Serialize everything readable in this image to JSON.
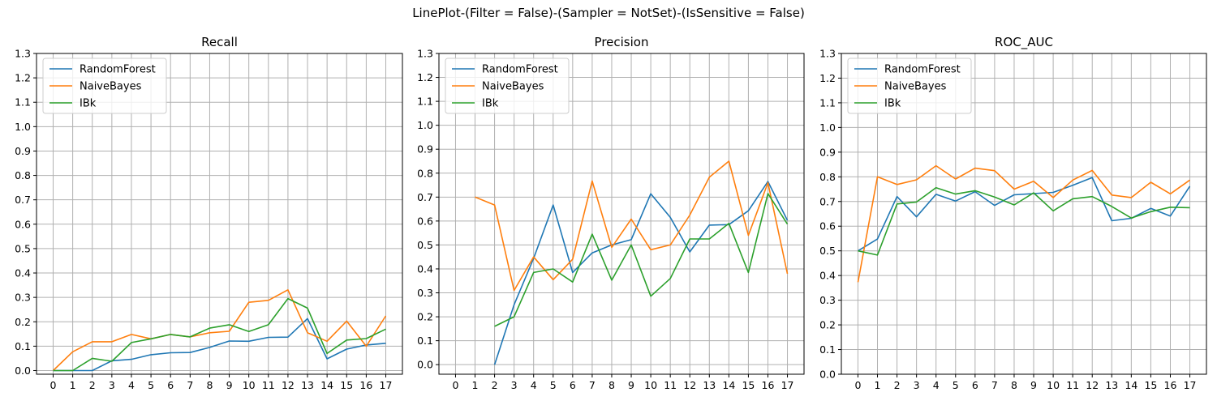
{
  "figure": {
    "suptitle": "LinePlot-(Filter = False)-(Sampler = NotSet)-(IsSensitive = False)",
    "colors": {
      "RandomForest": "#1f77b4",
      "NaiveBayes": "#ff7f0e",
      "IBk": "#2ca02c"
    }
  },
  "chart_data": [
    {
      "type": "line",
      "title": "Recall",
      "xlabel": "",
      "ylabel": "",
      "x": [
        0,
        1,
        2,
        3,
        4,
        5,
        6,
        7,
        8,
        9,
        10,
        11,
        12,
        13,
        14,
        15,
        16,
        17
      ],
      "xlim": [
        -0.85,
        17.85
      ],
      "ylim": [
        -0.015,
        1.3
      ],
      "yticks": [
        0.0,
        0.1,
        0.2,
        0.3,
        0.4,
        0.5,
        0.6,
        0.7,
        0.8,
        0.9,
        1.0,
        1.1,
        1.2,
        1.3
      ],
      "grid": true,
      "legend": "top-left",
      "series": [
        {
          "name": "RandomForest",
          "values": [
            0.0,
            0.0,
            0.0,
            0.04,
            0.046,
            0.065,
            0.073,
            0.074,
            0.095,
            0.121,
            0.12,
            0.136,
            0.137,
            0.213,
            0.048,
            0.088,
            0.105,
            0.112
          ]
        },
        {
          "name": "NaiveBayes",
          "values": [
            0.0,
            0.077,
            0.118,
            0.118,
            0.148,
            0.13,
            0.148,
            0.138,
            0.155,
            0.161,
            0.28,
            0.288,
            0.331,
            0.155,
            0.12,
            0.203,
            0.1,
            0.224
          ]
        },
        {
          "name": "IBk",
          "values": [
            0.0,
            0.0,
            0.05,
            0.038,
            0.115,
            0.13,
            0.148,
            0.138,
            0.174,
            0.188,
            0.16,
            0.188,
            0.295,
            0.256,
            0.07,
            0.125,
            0.131,
            0.17
          ]
        }
      ]
    },
    {
      "type": "line",
      "title": "Precision",
      "xlabel": "",
      "ylabel": "",
      "x": [
        0,
        1,
        2,
        3,
        4,
        5,
        6,
        7,
        8,
        9,
        10,
        11,
        12,
        13,
        14,
        15,
        16,
        17
      ],
      "xlim": [
        -0.85,
        17.85
      ],
      "ylim": [
        -0.04,
        1.3
      ],
      "yticks": [
        0.0,
        0.1,
        0.2,
        0.3,
        0.4,
        0.5,
        0.6,
        0.7,
        0.8,
        0.9,
        1.0,
        1.1,
        1.2,
        1.3
      ],
      "grid": true,
      "legend": "top-left",
      "series": [
        {
          "name": "RandomForest",
          "values": [
            null,
            null,
            0.0,
            0.25,
            0.444,
            0.667,
            0.385,
            0.467,
            0.5,
            0.522,
            0.714,
            0.615,
            0.471,
            0.583,
            0.585,
            0.643,
            0.765,
            0.603
          ]
        },
        {
          "name": "NaiveBayes",
          "values": [
            null,
            0.7,
            0.667,
            0.31,
            0.45,
            0.355,
            0.44,
            0.767,
            0.49,
            0.608,
            0.48,
            0.5,
            0.625,
            0.783,
            0.85,
            0.54,
            0.76,
            0.38
          ]
        },
        {
          "name": "IBk",
          "values": [
            null,
            null,
            0.16,
            0.2,
            0.385,
            0.4,
            0.345,
            0.545,
            0.353,
            0.5,
            0.286,
            0.36,
            0.525,
            0.525,
            0.59,
            0.385,
            0.715,
            0.587
          ]
        }
      ]
    },
    {
      "type": "line",
      "title": "ROC_AUC",
      "xlabel": "",
      "ylabel": "",
      "x": [
        0,
        1,
        2,
        3,
        4,
        5,
        6,
        7,
        8,
        9,
        10,
        11,
        12,
        13,
        14,
        15,
        16,
        17
      ],
      "xlim": [
        -0.85,
        17.85
      ],
      "ylim": [
        0.0,
        1.3
      ],
      "yticks": [
        0.0,
        0.1,
        0.2,
        0.3,
        0.4,
        0.5,
        0.6,
        0.7,
        0.8,
        0.9,
        1.0,
        1.1,
        1.2,
        1.3
      ],
      "grid": true,
      "legend": "top-left",
      "series": [
        {
          "name": "RandomForest",
          "values": [
            0.5,
            0.548,
            0.72,
            0.638,
            0.729,
            0.702,
            0.74,
            0.684,
            0.727,
            0.732,
            0.737,
            0.766,
            0.797,
            0.622,
            0.632,
            0.672,
            0.641,
            0.762
          ]
        },
        {
          "name": "NaiveBayes",
          "values": [
            0.373,
            0.8,
            0.769,
            0.788,
            0.845,
            0.791,
            0.835,
            0.825,
            0.75,
            0.782,
            0.716,
            0.787,
            0.826,
            0.726,
            0.716,
            0.778,
            0.731,
            0.787
          ]
        },
        {
          "name": "IBk",
          "values": [
            0.5,
            0.483,
            0.69,
            0.698,
            0.756,
            0.73,
            0.744,
            0.718,
            0.686,
            0.735,
            0.662,
            0.711,
            0.72,
            0.68,
            0.633,
            0.659,
            0.677,
            0.675
          ]
        }
      ]
    }
  ]
}
